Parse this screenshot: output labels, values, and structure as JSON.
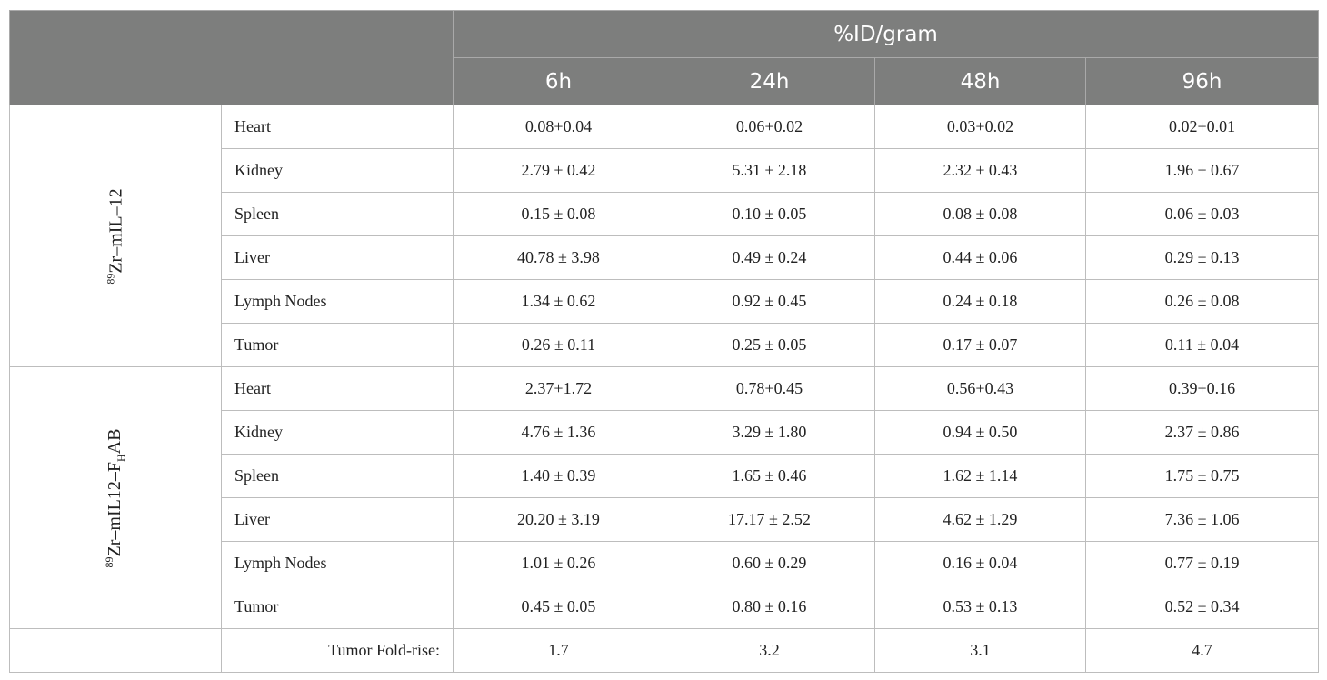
{
  "header": {
    "group_title": "%ID/gram",
    "timepoints": [
      "6h",
      "24h",
      "48h",
      "96h"
    ]
  },
  "groups": [
    {
      "label_sup": "89",
      "label_main": "Zr–mIL–12",
      "label_sub": "",
      "label_tail": "",
      "rows": [
        {
          "organ": "Heart",
          "values": [
            "0.08+0.04",
            "0.06+0.02",
            "0.03+0.02",
            "0.02+0.01"
          ]
        },
        {
          "organ": "Kidney",
          "values": [
            "2.79 ± 0.42",
            "5.31 ± 2.18",
            "2.32 ± 0.43",
            "1.96 ± 0.67"
          ]
        },
        {
          "organ": "Spleen",
          "values": [
            "0.15 ± 0.08",
            "0.10 ± 0.05",
            "0.08 ± 0.08",
            "0.06 ± 0.03"
          ]
        },
        {
          "organ": "Liver",
          "values": [
            "40.78 ± 3.98",
            "0.49 ± 0.24",
            "0.44 ± 0.06",
            "0.29 ± 0.13"
          ]
        },
        {
          "organ": "Lymph Nodes",
          "values": [
            "1.34 ± 0.62",
            "0.92 ± 0.45",
            "0.24 ± 0.18",
            "0.26 ± 0.08"
          ]
        },
        {
          "organ": "Tumor",
          "values": [
            "0.26 ± 0.11",
            "0.25 ± 0.05",
            "0.17 ± 0.07",
            "0.11 ± 0.04"
          ]
        }
      ]
    },
    {
      "label_sup": "89",
      "label_main": "Zr–mIL12–F",
      "label_sub": "H",
      "label_tail": "AB",
      "rows": [
        {
          "organ": "Heart",
          "values": [
            "2.37+1.72",
            "0.78+0.45",
            "0.56+0.43",
            "0.39+0.16"
          ]
        },
        {
          "organ": "Kidney",
          "values": [
            "4.76 ± 1.36",
            "3.29 ± 1.80",
            "0.94 ± 0.50",
            "2.37 ± 0.86"
          ]
        },
        {
          "organ": "Spleen",
          "values": [
            "1.40 ± 0.39",
            "1.65 ± 0.46",
            "1.62 ± 1.14",
            "1.75 ± 0.75"
          ]
        },
        {
          "organ": "Liver",
          "values": [
            "20.20 ± 3.19",
            "17.17 ± 2.52",
            "4.62 ± 1.29",
            "7.36 ± 1.06"
          ]
        },
        {
          "organ": "Lymph Nodes",
          "values": [
            "1.01 ± 0.26",
            "0.60 ± 0.29",
            "0.16 ± 0.04",
            "0.77 ± 0.19"
          ]
        },
        {
          "organ": "Tumor",
          "values": [
            "0.45 ± 0.05",
            "0.80 ± 0.16",
            "0.53 ± 0.13",
            "0.52 ± 0.34"
          ]
        }
      ]
    }
  ],
  "footer": {
    "label": "Tumor Fold-rise:",
    "values": [
      "1.7",
      "3.2",
      "3.1",
      "4.7"
    ]
  },
  "colors": {
    "header_bg": "#7d7e7d",
    "header_text": "#ffffff",
    "border": "#bdbdbd"
  }
}
